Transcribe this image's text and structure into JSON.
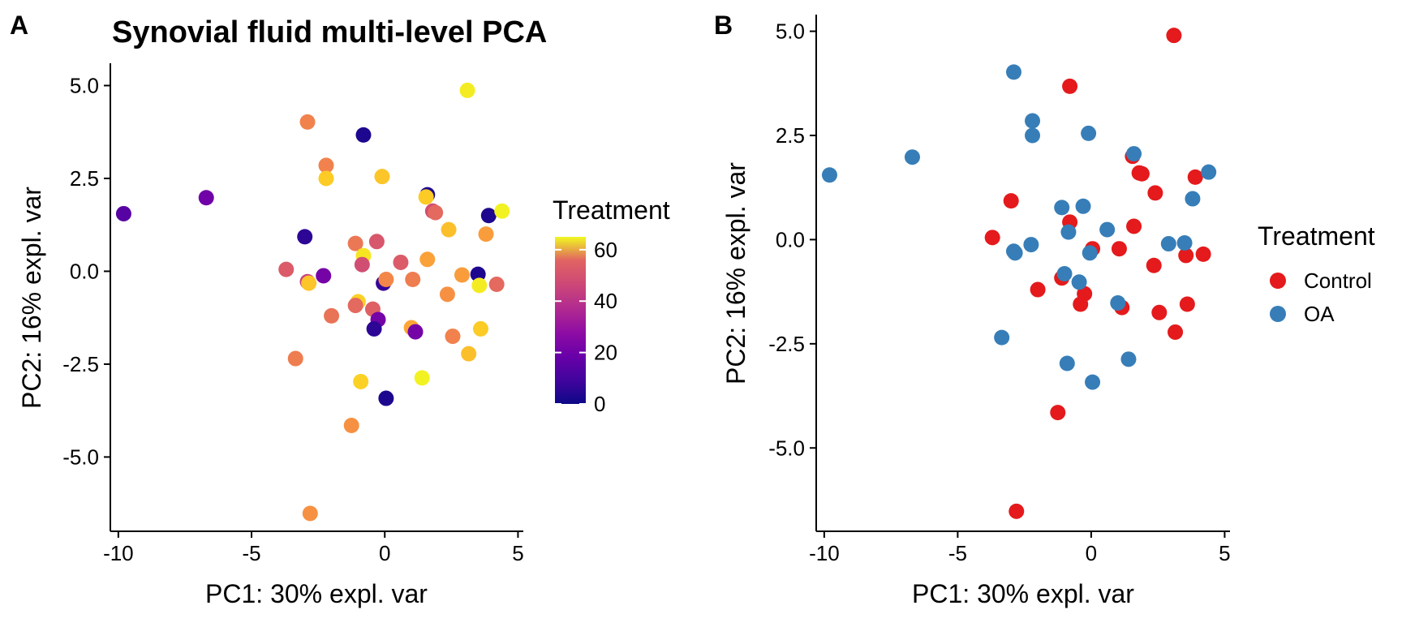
{
  "chart_data": [
    {
      "panel_label": "A",
      "type": "scatter",
      "title": "Synovial fluid multi-level PCA",
      "xlabel": "PC1: 30% expl. var",
      "ylabel": "PC2: 16% expl. var",
      "xlim": [
        -10.3,
        5.2
      ],
      "ylim": [
        -7.0,
        5.6
      ],
      "xticks": [
        "-10",
        "-5",
        "0",
        "5"
      ],
      "yticks": [
        "5.0",
        "2.5",
        "0.0",
        "-2.5",
        "-5.0"
      ],
      "grid": false,
      "legend": {
        "title": "Treatment",
        "type": "colorbar",
        "placement": "right",
        "range": [
          0,
          65
        ],
        "ticks": [
          "0",
          "20",
          "40",
          "60"
        ],
        "palette": "plasma"
      },
      "points": [
        {
          "x": -9.8,
          "y": 1.55,
          "treatment": 10
        },
        {
          "x": -6.7,
          "y": 1.98,
          "treatment": 14
        },
        {
          "x": -2.9,
          "y": 4.02,
          "treatment": 45
        },
        {
          "x": -0.8,
          "y": 3.67,
          "treatment": 2
        },
        {
          "x": 3.1,
          "y": 4.87,
          "treatment": 63
        },
        {
          "x": -2.2,
          "y": 2.85,
          "treatment": 45
        },
        {
          "x": -2.2,
          "y": 2.5,
          "treatment": 58
        },
        {
          "x": -0.1,
          "y": 2.55,
          "treatment": 57
        },
        {
          "x": 1.6,
          "y": 2.06,
          "treatment": 2
        },
        {
          "x": 1.55,
          "y": 2.0,
          "treatment": 58
        },
        {
          "x": 1.8,
          "y": 1.62,
          "treatment": 34
        },
        {
          "x": 1.9,
          "y": 1.58,
          "treatment": 40
        },
        {
          "x": 3.9,
          "y": 1.5,
          "treatment": 2
        },
        {
          "x": 4.4,
          "y": 1.62,
          "treatment": 64
        },
        {
          "x": 2.4,
          "y": 1.12,
          "treatment": 56
        },
        {
          "x": -3.0,
          "y": 0.93,
          "treatment": 4
        },
        {
          "x": -1.1,
          "y": 0.75,
          "treatment": 43
        },
        {
          "x": -0.3,
          "y": 0.8,
          "treatment": 36
        },
        {
          "x": -0.8,
          "y": 0.42,
          "treatment": 62
        },
        {
          "x": 3.8,
          "y": 1.0,
          "treatment": 50
        },
        {
          "x": -3.7,
          "y": 0.05,
          "treatment": 37
        },
        {
          "x": -2.3,
          "y": -0.12,
          "treatment": 15
        },
        {
          "x": -0.85,
          "y": 0.18,
          "treatment": 34
        },
        {
          "x": 0.6,
          "y": 0.24,
          "treatment": 37
        },
        {
          "x": 1.6,
          "y": 0.32,
          "treatment": 51
        },
        {
          "x": -2.9,
          "y": -0.28,
          "treatment": 32
        },
        {
          "x": -2.85,
          "y": -0.32,
          "treatment": 57
        },
        {
          "x": -0.05,
          "y": -0.32,
          "treatment": 5
        },
        {
          "x": 0.05,
          "y": -0.22,
          "treatment": 46
        },
        {
          "x": 1.05,
          "y": -0.22,
          "treatment": 44
        },
        {
          "x": 2.9,
          "y": -0.1,
          "treatment": 50
        },
        {
          "x": 3.5,
          "y": -0.08,
          "treatment": 2
        },
        {
          "x": 3.55,
          "y": -0.38,
          "treatment": 63
        },
        {
          "x": 4.2,
          "y": -0.35,
          "treatment": 40
        },
        {
          "x": 2.35,
          "y": -0.62,
          "treatment": 48
        },
        {
          "x": -1.0,
          "y": -0.82,
          "treatment": 59
        },
        {
          "x": -1.1,
          "y": -0.92,
          "treatment": 40
        },
        {
          "x": -0.45,
          "y": -1.02,
          "treatment": 38
        },
        {
          "x": -0.25,
          "y": -1.3,
          "treatment": 15
        },
        {
          "x": -2.0,
          "y": -1.2,
          "treatment": 42
        },
        {
          "x": -0.4,
          "y": -1.55,
          "treatment": 4
        },
        {
          "x": 1.0,
          "y": -1.52,
          "treatment": 52
        },
        {
          "x": 1.15,
          "y": -1.63,
          "treatment": 15
        },
        {
          "x": 2.55,
          "y": -1.75,
          "treatment": 45
        },
        {
          "x": 3.6,
          "y": -1.55,
          "treatment": 58
        },
        {
          "x": 3.15,
          "y": -2.22,
          "treatment": 56
        },
        {
          "x": -3.35,
          "y": -2.35,
          "treatment": 44
        },
        {
          "x": -0.9,
          "y": -2.97,
          "treatment": 59
        },
        {
          "x": 1.4,
          "y": -2.87,
          "treatment": 64
        },
        {
          "x": 0.05,
          "y": -3.42,
          "treatment": 2
        },
        {
          "x": -1.25,
          "y": -4.15,
          "treatment": 48
        },
        {
          "x": -2.8,
          "y": -6.52,
          "treatment": 48
        }
      ]
    },
    {
      "panel_label": "B",
      "type": "scatter",
      "title": "",
      "xlabel": "PC1: 30% expl. var",
      "ylabel": "PC2: 16% expl. var",
      "xlim": [
        -10.3,
        5.2
      ],
      "ylim": [
        -7.0,
        5.4
      ],
      "xticks": [
        "-10",
        "-5",
        "0",
        "5"
      ],
      "yticks": [
        "5.0",
        "2.5",
        "0.0",
        "-2.5",
        "-5.0"
      ],
      "grid": false,
      "legend": {
        "title": "Treatment",
        "type": "categorical",
        "placement": "right",
        "entries": [
          {
            "label": "Control",
            "color": "#e41a1c"
          },
          {
            "label": "OA",
            "color": "#377eb8"
          }
        ]
      },
      "series": [
        {
          "name": "Control",
          "color": "#e41a1c",
          "points": [
            {
              "x": 3.1,
              "y": 4.9
            },
            {
              "x": -0.8,
              "y": 3.68
            },
            {
              "x": 1.55,
              "y": 2.0
            },
            {
              "x": 1.8,
              "y": 1.6
            },
            {
              "x": 1.9,
              "y": 1.58
            },
            {
              "x": 3.9,
              "y": 1.5
            },
            {
              "x": 2.4,
              "y": 1.12
            },
            {
              "x": -3.0,
              "y": 0.93
            },
            {
              "x": -0.8,
              "y": 0.42
            },
            {
              "x": 1.6,
              "y": 0.32
            },
            {
              "x": -3.7,
              "y": 0.05
            },
            {
              "x": 0.05,
              "y": -0.22
            },
            {
              "x": 1.05,
              "y": -0.22
            },
            {
              "x": 3.55,
              "y": -0.38
            },
            {
              "x": 4.2,
              "y": -0.35
            },
            {
              "x": 2.35,
              "y": -0.62
            },
            {
              "x": -1.1,
              "y": -0.92
            },
            {
              "x": -2.0,
              "y": -1.2
            },
            {
              "x": -0.25,
              "y": -1.3
            },
            {
              "x": -0.4,
              "y": -1.55
            },
            {
              "x": 1.15,
              "y": -1.63
            },
            {
              "x": 2.55,
              "y": -1.75
            },
            {
              "x": 3.6,
              "y": -1.55
            },
            {
              "x": 3.15,
              "y": -2.22
            },
            {
              "x": -1.25,
              "y": -4.15
            },
            {
              "x": -2.8,
              "y": -6.52
            }
          ]
        },
        {
          "name": "OA",
          "color": "#377eb8",
          "points": [
            {
              "x": -9.8,
              "y": 1.55
            },
            {
              "x": -6.7,
              "y": 1.98
            },
            {
              "x": -2.9,
              "y": 4.02
            },
            {
              "x": -2.2,
              "y": 2.85
            },
            {
              "x": -2.2,
              "y": 2.5
            },
            {
              "x": -0.1,
              "y": 2.55
            },
            {
              "x": 1.6,
              "y": 2.06
            },
            {
              "x": 4.4,
              "y": 1.62
            },
            {
              "x": 3.8,
              "y": 0.98
            },
            {
              "x": -1.1,
              "y": 0.77
            },
            {
              "x": -0.3,
              "y": 0.8
            },
            {
              "x": -0.85,
              "y": 0.18
            },
            {
              "x": 0.6,
              "y": 0.24
            },
            {
              "x": -2.25,
              "y": -0.12
            },
            {
              "x": -2.9,
              "y": -0.28
            },
            {
              "x": -2.85,
              "y": -0.32
            },
            {
              "x": -0.05,
              "y": -0.32
            },
            {
              "x": 2.9,
              "y": -0.1
            },
            {
              "x": 3.5,
              "y": -0.08
            },
            {
              "x": -1.0,
              "y": -0.82
            },
            {
              "x": -0.45,
              "y": -1.02
            },
            {
              "x": 1.0,
              "y": -1.52
            },
            {
              "x": -3.35,
              "y": -2.35
            },
            {
              "x": -0.9,
              "y": -2.97
            },
            {
              "x": 1.4,
              "y": -2.87
            },
            {
              "x": 0.05,
              "y": -3.42
            }
          ]
        }
      ]
    }
  ]
}
